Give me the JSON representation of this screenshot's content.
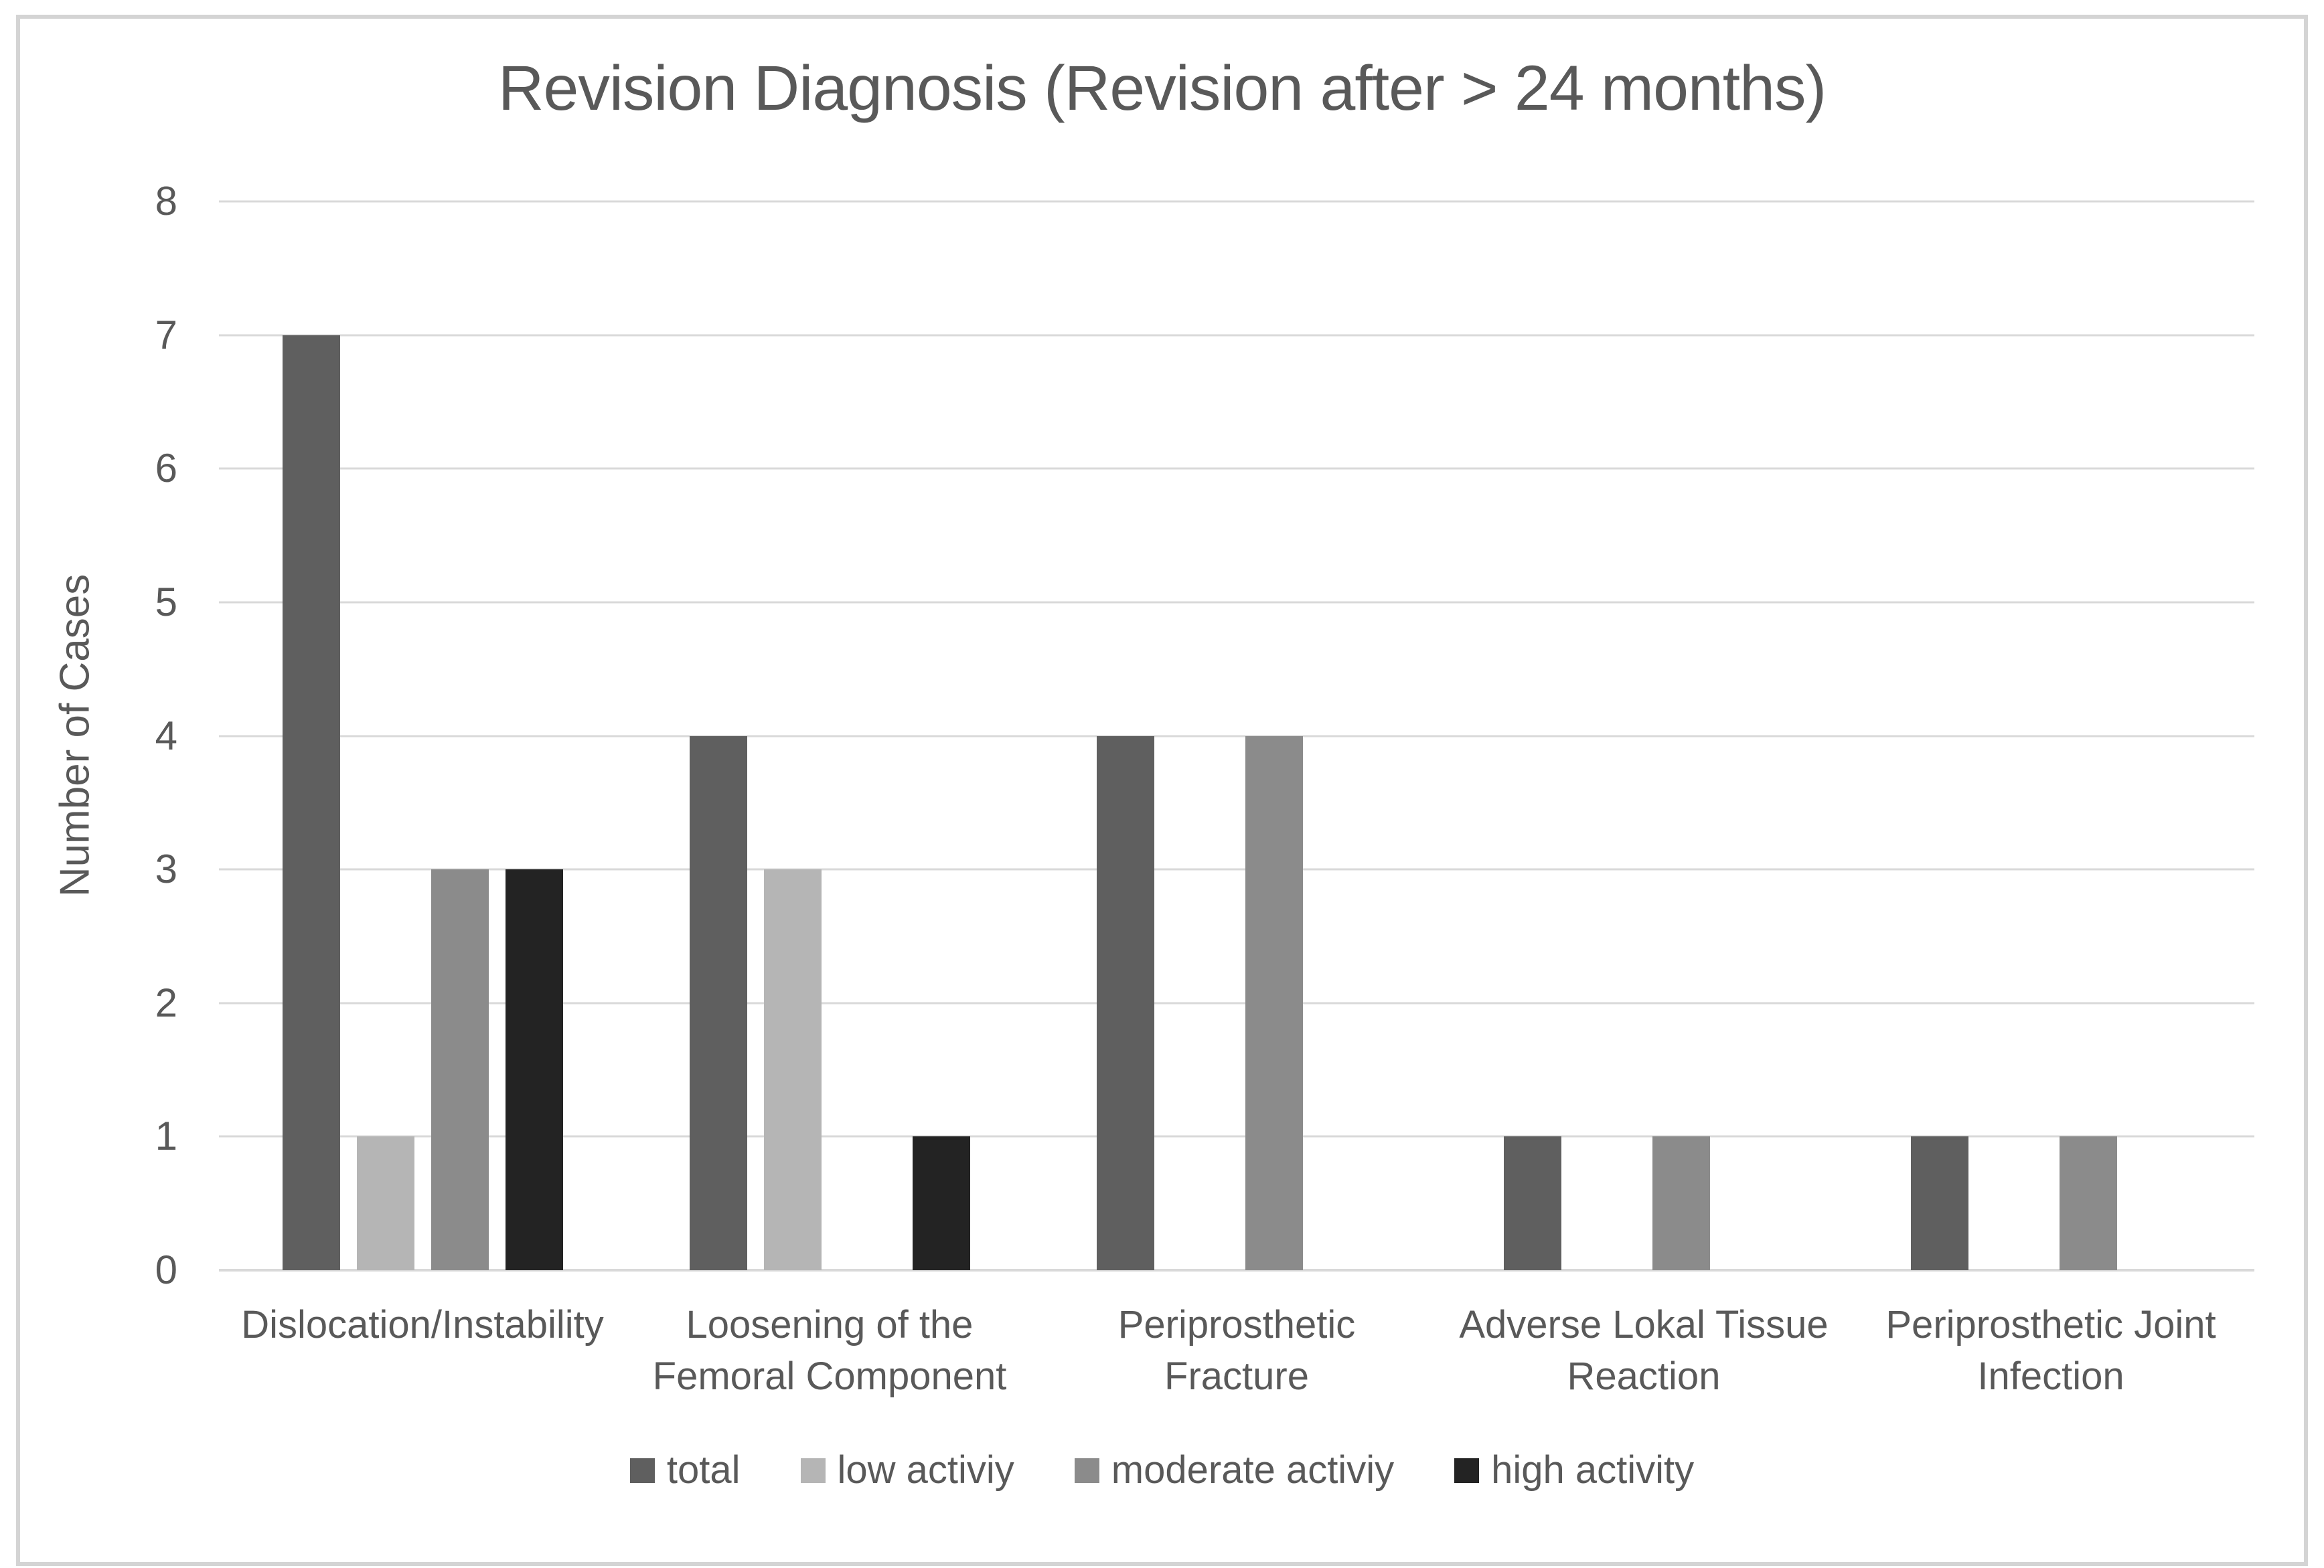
{
  "chart_data": {
    "type": "bar",
    "title": "Revision Diagnosis (Revision after > 24 months)",
    "xlabel": "",
    "ylabel": "Number of Cases",
    "ylim": [
      0,
      8
    ],
    "yticks": [
      0,
      1,
      2,
      3,
      4,
      5,
      6,
      7,
      8
    ],
    "grid": true,
    "legend_position": "bottom",
    "categories": [
      "Dislocation/Instability",
      "Loosening of the\nFemoral Component",
      "Periprosthetic\nFracture",
      "Adverse Lokal Tissue\nReaction",
      "Periprosthetic Joint\nInfection"
    ],
    "series": [
      {
        "name": "total",
        "color": "#5f5f5f",
        "values": [
          7,
          4,
          4,
          1,
          1
        ]
      },
      {
        "name": "low activiy",
        "color": "#b5b5b5",
        "values": [
          1,
          3,
          0,
          0,
          0
        ]
      },
      {
        "name": "moderate activiy",
        "color": "#8b8b8b",
        "values": [
          3,
          0,
          4,
          1,
          1
        ]
      },
      {
        "name": "high activity",
        "color": "#232323",
        "values": [
          3,
          1,
          0,
          0,
          0
        ]
      }
    ],
    "colors": {
      "gridline": "#d9d9d9",
      "text": "#595959",
      "frame_border": "#d4d4d4"
    }
  }
}
